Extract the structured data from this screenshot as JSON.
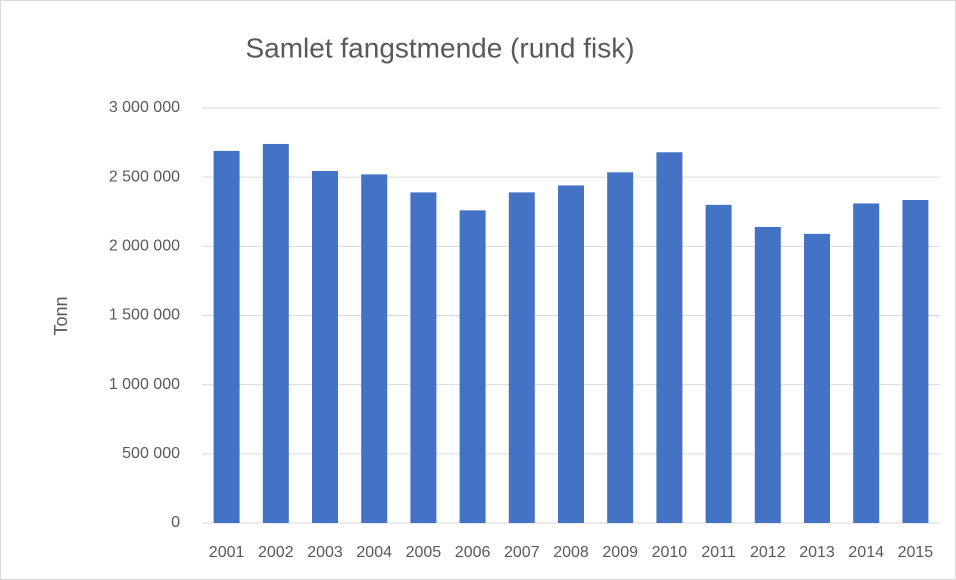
{
  "chart_data": {
    "type": "bar",
    "title": "Samlet fangstmende (rund fisk)",
    "y_label": "Tonn",
    "categories": [
      "2001",
      "2002",
      "2003",
      "2004",
      "2005",
      "2006",
      "2007",
      "2008",
      "2009",
      "2010",
      "2011",
      "2012",
      "2013",
      "2014",
      "2015"
    ],
    "values": [
      2690000,
      2740000,
      2545000,
      2520000,
      2390000,
      2260000,
      2390000,
      2440000,
      2535000,
      2680000,
      2300000,
      2140000,
      2090000,
      2310000,
      2335000
    ],
    "color": "#4472c4",
    "ylim": [
      0,
      3000000
    ],
    "yticks": [
      0,
      {
        "value": 500000,
        "label": "500 000"
      },
      {
        "value": 1000000,
        "label": "1 000 000"
      },
      {
        "value": 1500000,
        "label": "1 500 000"
      },
      {
        "value": 2000000,
        "label": "2 000 000"
      },
      {
        "value": 2500000,
        "label": "2 500 000"
      },
      {
        "value": 3000000,
        "label": "3 000 000"
      }
    ],
    "grid": true
  }
}
